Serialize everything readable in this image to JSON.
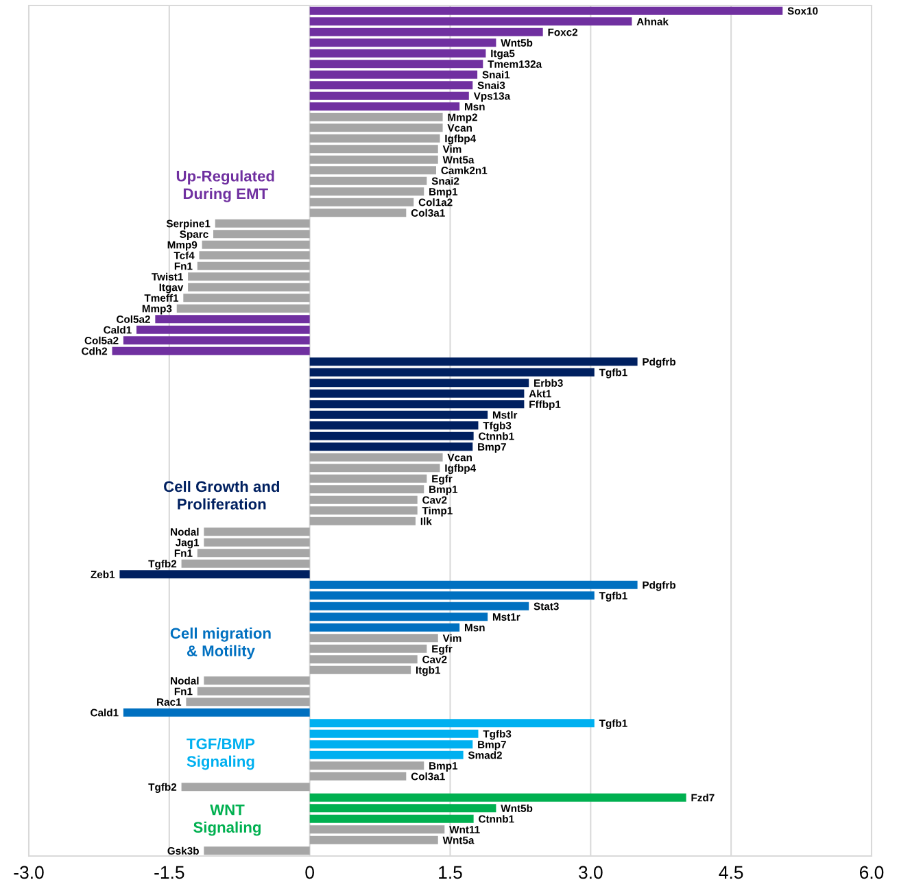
{
  "chart_data": {
    "type": "bar",
    "orientation": "horizontal",
    "categories": [
      "Sox10",
      "Ahnak",
      "Foxc2",
      "Wnt5b",
      "Itga5",
      "Tmem132a",
      "Snai1",
      "Snai3",
      "Vps13a",
      "Msn",
      "Mmp2",
      "Vcan",
      "Igfbp4",
      "Vim",
      "Wnt5a",
      "Camk2n1",
      "Snai2",
      "Bmp1",
      "Col1a2",
      "Col3a1",
      "Serpine1",
      "Sparc",
      "Mmp9",
      "Tcf4",
      "Fn1",
      "Twist1",
      "Itgav",
      "Tmeff1",
      "Mmp3",
      "Col5a2",
      "Cald1",
      "Col5a2",
      "Cdh2",
      "Pdgfrb",
      "Tgfb1",
      "Erbb3",
      "Akt1",
      "Fffbp1",
      "Mstlr",
      "Tfgb3",
      "Ctnnb1",
      "Bmp7",
      "Vcan",
      "Igfbp4",
      "Egfr",
      "Bmp1",
      "Cav2",
      "Timp1",
      "Ilk",
      "Nodal",
      "Jag1",
      "Fn1",
      "Tgfb2",
      "Zeb1",
      "Pdgfrb",
      "Tgfb1",
      "Stat3",
      "Mst1r",
      "Msn",
      "Vim",
      "Egfr",
      "Cav2",
      "Itgb1",
      "Nodal",
      "Fn1",
      "Rac1",
      "Cald1",
      "Tgfb1",
      "Tgfb3",
      "Bmp7",
      "Smad2",
      "Bmp1",
      "Col3a1",
      "Tgfb2",
      "Fzd7",
      "Wnt5b",
      "Ctnnb1",
      "Wnt11",
      "Wnt5a",
      "Gsk3b"
    ],
    "values": [
      5.05,
      3.44,
      2.49,
      1.99,
      1.88,
      1.85,
      1.79,
      1.74,
      1.7,
      1.6,
      1.42,
      1.42,
      1.39,
      1.37,
      1.37,
      1.35,
      1.25,
      1.22,
      1.11,
      1.03,
      -1.01,
      -1.03,
      -1.15,
      -1.18,
      -1.2,
      -1.3,
      -1.3,
      -1.35,
      -1.42,
      -1.65,
      -1.85,
      -1.99,
      -2.11,
      3.5,
      3.04,
      2.34,
      2.29,
      2.29,
      1.9,
      1.8,
      1.75,
      1.74,
      1.42,
      1.39,
      1.25,
      1.22,
      1.15,
      1.15,
      1.13,
      -1.13,
      -1.13,
      -1.2,
      -1.37,
      -2.03,
      3.5,
      3.04,
      2.34,
      1.9,
      1.6,
      1.37,
      1.25,
      1.15,
      1.08,
      -1.13,
      -1.2,
      -1.32,
      -1.99,
      3.04,
      1.8,
      1.74,
      1.64,
      1.22,
      1.03,
      -1.37,
      4.02,
      1.99,
      1.75,
      1.44,
      1.37,
      -1.13
    ],
    "colors": [
      "#7030a0",
      "#7030a0",
      "#7030a0",
      "#7030a0",
      "#7030a0",
      "#7030a0",
      "#7030a0",
      "#7030a0",
      "#7030a0",
      "#7030a0",
      "#a6a6a6",
      "#a6a6a6",
      "#a6a6a6",
      "#a6a6a6",
      "#a6a6a6",
      "#a6a6a6",
      "#a6a6a6",
      "#a6a6a6",
      "#a6a6a6",
      "#a6a6a6",
      "#a6a6a6",
      "#a6a6a6",
      "#a6a6a6",
      "#a6a6a6",
      "#a6a6a6",
      "#a6a6a6",
      "#a6a6a6",
      "#a6a6a6",
      "#a6a6a6",
      "#7030a0",
      "#7030a0",
      "#7030a0",
      "#7030a0",
      "#002060",
      "#002060",
      "#002060",
      "#002060",
      "#002060",
      "#002060",
      "#002060",
      "#002060",
      "#002060",
      "#a6a6a6",
      "#a6a6a6",
      "#a6a6a6",
      "#a6a6a6",
      "#a6a6a6",
      "#a6a6a6",
      "#a6a6a6",
      "#a6a6a6",
      "#a6a6a6",
      "#a6a6a6",
      "#a6a6a6",
      "#002060",
      "#0070c0",
      "#0070c0",
      "#0070c0",
      "#0070c0",
      "#0070c0",
      "#a6a6a6",
      "#a6a6a6",
      "#a6a6a6",
      "#a6a6a6",
      "#a6a6a6",
      "#a6a6a6",
      "#a6a6a6",
      "#0070c0",
      "#00b0f0",
      "#00b0f0",
      "#00b0f0",
      "#00b0f0",
      "#a6a6a6",
      "#a6a6a6",
      "#a6a6a6",
      "#00b050",
      "#00b050",
      "#00b050",
      "#a6a6a6",
      "#a6a6a6",
      "#a6a6a6"
    ],
    "xlim": [
      -3,
      6
    ],
    "xticks": [
      {
        "value": -3,
        "label": "-3.0"
      },
      {
        "value": -1.5,
        "label": "-1.5"
      },
      0,
      {
        "value": 1.5,
        "label": "1.5"
      },
      {
        "value": 3,
        "label": "3.0"
      },
      {
        "value": 4.5,
        "label": "4.5"
      },
      {
        "value": 6,
        "label": "6.0"
      }
    ],
    "grid": "x",
    "annotations": [
      "Up-Regulated\nDuring EMT",
      "Cell Growth and\nProliferation",
      "Cell migration\n& Motility",
      "TGF/BMP\nSignaling",
      "WNT\nSignaling"
    ]
  }
}
